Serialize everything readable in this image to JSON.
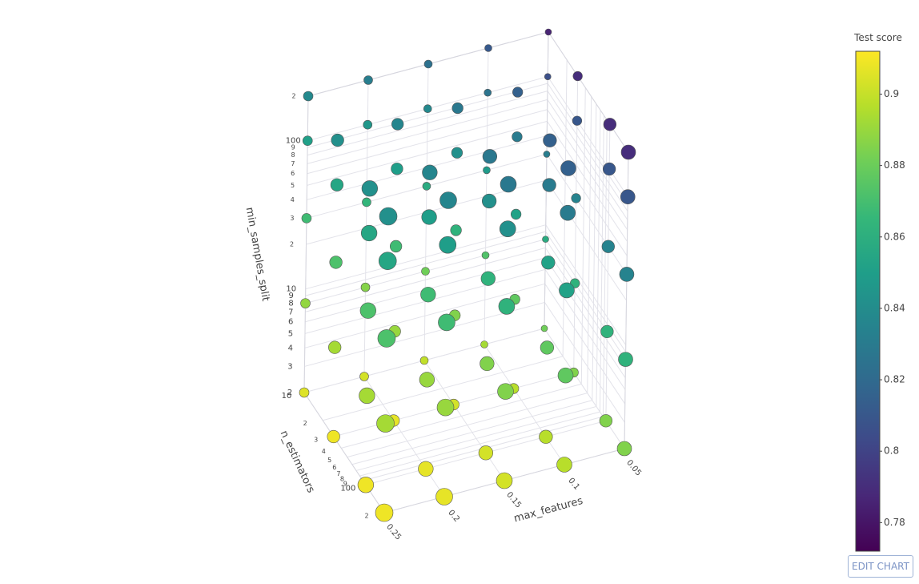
{
  "chart_data": {
    "type": "scatter3d",
    "x_label": "max_features",
    "y_label": "n_estimators",
    "z_label": "min_samples_split",
    "xlim": [
      0.05,
      0.25
    ],
    "ylim": [
      10,
      200
    ],
    "zlim": [
      2,
      200
    ],
    "ylog": true,
    "zlog": true,
    "xticks": [
      0.05,
      0.1,
      0.15,
      0.2,
      0.25
    ],
    "yticks": [
      10,
      {
        "value": 20,
        "label": "2"
      },
      {
        "value": 30,
        "label": "3"
      },
      {
        "value": 40,
        "label": "4"
      },
      {
        "value": 50,
        "label": "5"
      },
      {
        "value": 60,
        "label": "6"
      },
      {
        "value": 70,
        "label": "7"
      },
      {
        "value": 80,
        "label": "8"
      },
      {
        "value": 90,
        "label": "9"
      },
      100,
      {
        "value": 200,
        "label": "2"
      }
    ],
    "zticks": [
      2,
      3,
      4,
      5,
      6,
      7,
      8,
      9,
      10,
      {
        "value": 20,
        "label": "2"
      },
      {
        "value": 30,
        "label": "3"
      },
      {
        "value": 40,
        "label": "4"
      },
      {
        "value": 50,
        "label": "5"
      },
      {
        "value": 60,
        "label": "6"
      },
      {
        "value": 70,
        "label": "7"
      },
      {
        "value": 80,
        "label": "8"
      },
      {
        "value": 90,
        "label": "9"
      },
      100,
      {
        "value": 200,
        "label": "2"
      }
    ],
    "x": [
      0.05,
      0.05,
      0.05,
      0.05,
      0.05,
      0.05,
      0.05,
      0.05,
      0.05,
      0.05,
      0.05,
      0.05,
      0.05,
      0.05,
      0.05,
      0.05,
      0.05,
      0.05,
      0.05,
      0.05,
      0.1,
      0.1,
      0.1,
      0.1,
      0.1,
      0.1,
      0.1,
      0.1,
      0.1,
      0.1,
      0.1,
      0.1,
      0.1,
      0.1,
      0.1,
      0.1,
      0.1,
      0.1,
      0.1,
      0.1,
      0.15,
      0.15,
      0.15,
      0.15,
      0.15,
      0.15,
      0.15,
      0.15,
      0.15,
      0.15,
      0.15,
      0.15,
      0.15,
      0.15,
      0.15,
      0.15,
      0.15,
      0.15,
      0.15,
      0.15,
      0.2,
      0.2,
      0.2,
      0.2,
      0.2,
      0.2,
      0.2,
      0.2,
      0.2,
      0.2,
      0.2,
      0.2,
      0.2,
      0.2,
      0.2,
      0.2,
      0.2,
      0.2,
      0.2,
      0.2,
      0.25,
      0.25,
      0.25,
      0.25,
      0.25,
      0.25,
      0.25,
      0.25,
      0.25,
      0.25,
      0.25,
      0.25,
      0.25,
      0.25,
      0.25,
      0.25,
      0.25,
      0.25,
      0.25,
      0.25
    ],
    "y": [
      10,
      10,
      10,
      10,
      10,
      30,
      30,
      30,
      30,
      30,
      100,
      100,
      100,
      100,
      100,
      200,
      200,
      200,
      200,
      200,
      10,
      10,
      10,
      10,
      10,
      30,
      30,
      30,
      30,
      30,
      100,
      100,
      100,
      100,
      100,
      200,
      200,
      200,
      200,
      200,
      10,
      10,
      10,
      10,
      10,
      30,
      30,
      30,
      30,
      30,
      100,
      100,
      100,
      100,
      100,
      200,
      200,
      200,
      200,
      200,
      10,
      10,
      10,
      10,
      10,
      30,
      30,
      30,
      30,
      30,
      100,
      100,
      100,
      100,
      100,
      200,
      200,
      200,
      200,
      200,
      10,
      10,
      10,
      10,
      10,
      30,
      30,
      30,
      30,
      30,
      100,
      100,
      100,
      100,
      100,
      200,
      200,
      200,
      200,
      200
    ],
    "z": [
      2,
      8,
      30,
      100,
      200,
      2,
      8,
      30,
      100,
      200,
      2,
      8,
      30,
      100,
      200,
      2,
      8,
      30,
      100,
      200,
      2,
      8,
      30,
      100,
      200,
      2,
      8,
      30,
      100,
      200,
      2,
      8,
      30,
      100,
      200,
      2,
      8,
      30,
      100,
      200,
      2,
      8,
      30,
      100,
      200,
      2,
      8,
      30,
      100,
      200,
      2,
      8,
      30,
      100,
      200,
      2,
      8,
      30,
      100,
      200,
      2,
      8,
      30,
      100,
      200,
      2,
      8,
      30,
      100,
      200,
      2,
      8,
      30,
      100,
      200,
      2,
      8,
      30,
      100,
      200,
      2,
      8,
      30,
      100,
      200,
      2,
      8,
      30,
      100,
      200,
      2,
      8,
      30,
      100,
      200,
      2,
      8,
      30,
      100,
      200
    ],
    "values": [
      0.881,
      0.858,
      0.831,
      0.806,
      0.786,
      0.885,
      0.862,
      0.835,
      0.81,
      0.79,
      0.885,
      0.862,
      0.835,
      0.81,
      0.79,
      0.885,
      0.862,
      0.835,
      0.81,
      0.79,
      0.893,
      0.873,
      0.848,
      0.826,
      0.811,
      0.897,
      0.877,
      0.852,
      0.83,
      0.815,
      0.897,
      0.877,
      0.852,
      0.83,
      0.815,
      0.897,
      0.877,
      0.852,
      0.83,
      0.815,
      0.899,
      0.881,
      0.858,
      0.838,
      0.824,
      0.903,
      0.885,
      0.862,
      0.842,
      0.828,
      0.903,
      0.885,
      0.862,
      0.842,
      0.828,
      0.903,
      0.885,
      0.862,
      0.842,
      0.828,
      0.903,
      0.886,
      0.864,
      0.846,
      0.832,
      0.907,
      0.89,
      0.868,
      0.85,
      0.836,
      0.907,
      0.89,
      0.868,
      0.85,
      0.836,
      0.907,
      0.89,
      0.868,
      0.85,
      0.836,
      0.905,
      0.889,
      0.868,
      0.851,
      0.838,
      0.909,
      0.893,
      0.872,
      0.855,
      0.842,
      0.909,
      0.893,
      0.872,
      0.855,
      0.842,
      0.909,
      0.893,
      0.872,
      0.855,
      0.842
    ],
    "colorscale": "Viridis",
    "colorbar_title": "Test score",
    "colorbar_lim": [
      0.772,
      0.912
    ],
    "colorbar_ticks": [
      0.78,
      0.8,
      0.82,
      0.84,
      0.86,
      0.88,
      0.9
    ],
    "grid": true,
    "button": "EDIT CHART"
  }
}
